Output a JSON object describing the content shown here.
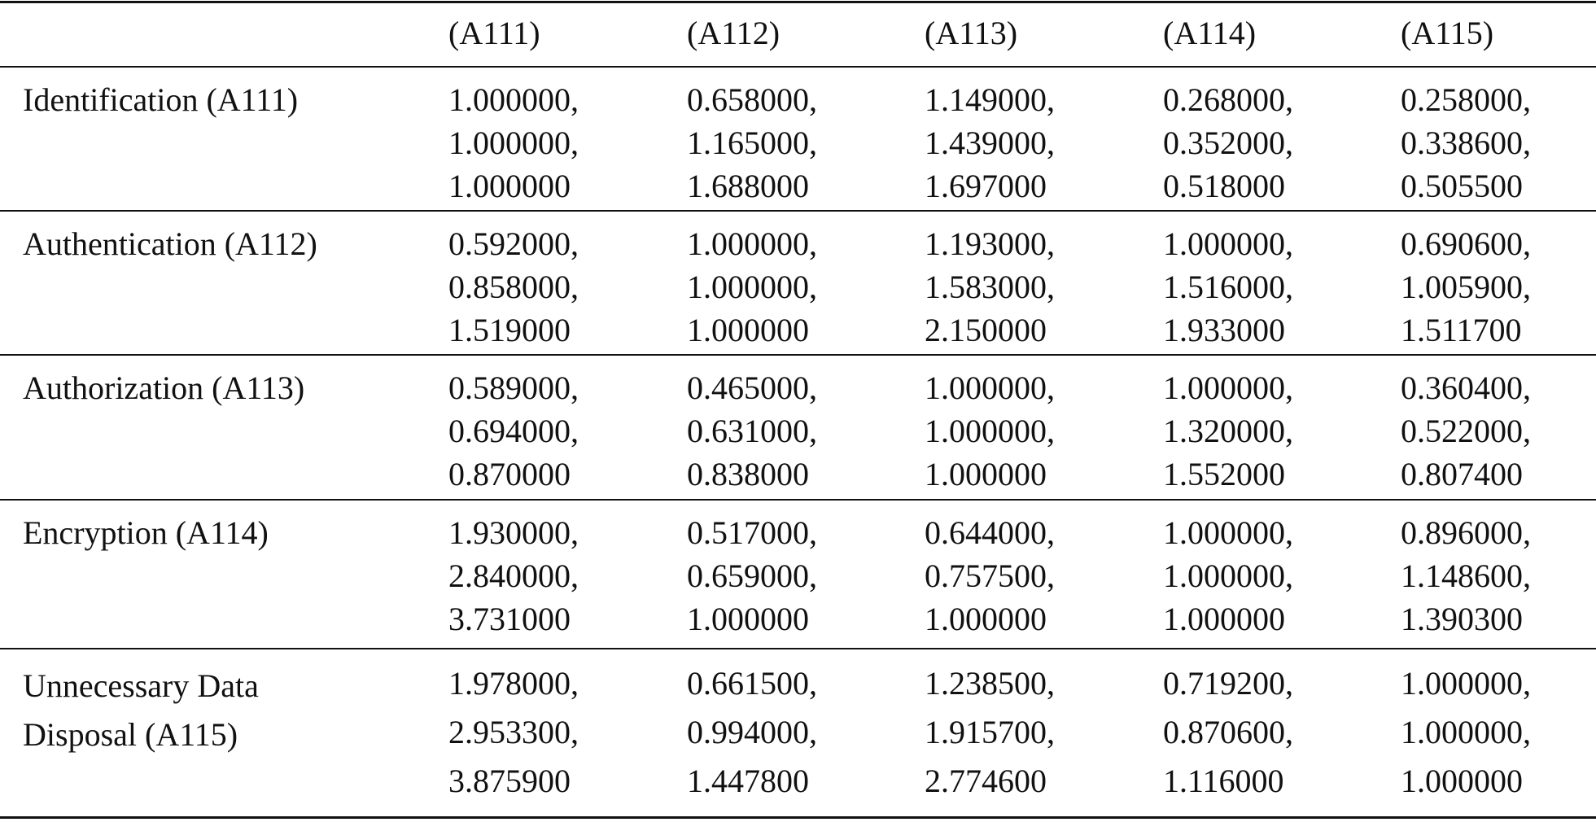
{
  "table": {
    "header": [
      "(A111)",
      "(A112)",
      "(A113)",
      "(A114)",
      "(A115)"
    ],
    "rows": [
      {
        "label": "Identification (A111)",
        "cells": [
          [
            "1.000000,",
            "1.000000,",
            "1.000000"
          ],
          [
            "0.658000,",
            "1.165000,",
            "1.688000"
          ],
          [
            "1.149000,",
            "1.439000,",
            "1.697000"
          ],
          [
            "0.268000,",
            "0.352000,",
            "0.518000"
          ],
          [
            "0.258000,",
            "0.338600,",
            "0.505500"
          ]
        ]
      },
      {
        "label": "Authentication (A112)",
        "cells": [
          [
            "0.592000,",
            "0.858000,",
            "1.519000"
          ],
          [
            "1.000000,",
            "1.000000,",
            "1.000000"
          ],
          [
            "1.193000,",
            "1.583000,",
            "2.150000"
          ],
          [
            "1.000000,",
            "1.516000,",
            "1.933000"
          ],
          [
            "0.690600,",
            "1.005900,",
            "1.511700"
          ]
        ]
      },
      {
        "label": "Authorization (A113)",
        "cells": [
          [
            "0.589000,",
            "0.694000,",
            "0.870000"
          ],
          [
            "0.465000,",
            "0.631000,",
            "0.838000"
          ],
          [
            "1.000000,",
            "1.000000,",
            "1.000000"
          ],
          [
            "1.000000,",
            "1.320000,",
            "1.552000"
          ],
          [
            "0.360400,",
            "0.522000,",
            "0.807400"
          ]
        ]
      },
      {
        "label": "Encryption (A114)",
        "cells": [
          [
            "1.930000,",
            "2.840000,",
            "3.731000"
          ],
          [
            "0.517000,",
            "0.659000,",
            "1.000000"
          ],
          [
            "0.644000,",
            "0.757500,",
            "1.000000"
          ],
          [
            "1.000000,",
            "1.000000,",
            "1.000000"
          ],
          [
            "0.896000,",
            "1.148600,",
            "1.390300"
          ]
        ]
      },
      {
        "label": "Unnecessary Data Disposal (A115)",
        "cells": [
          [
            "1.978000,",
            "2.953300,",
            "3.875900"
          ],
          [
            "0.661500,",
            "0.994000,",
            "1.447800"
          ],
          [
            "1.238500,",
            "1.915700,",
            "2.774600"
          ],
          [
            "0.719200,",
            "0.870600,",
            "1.116000"
          ],
          [
            "1.000000,",
            "1.000000,",
            "1.000000"
          ]
        ]
      }
    ]
  }
}
